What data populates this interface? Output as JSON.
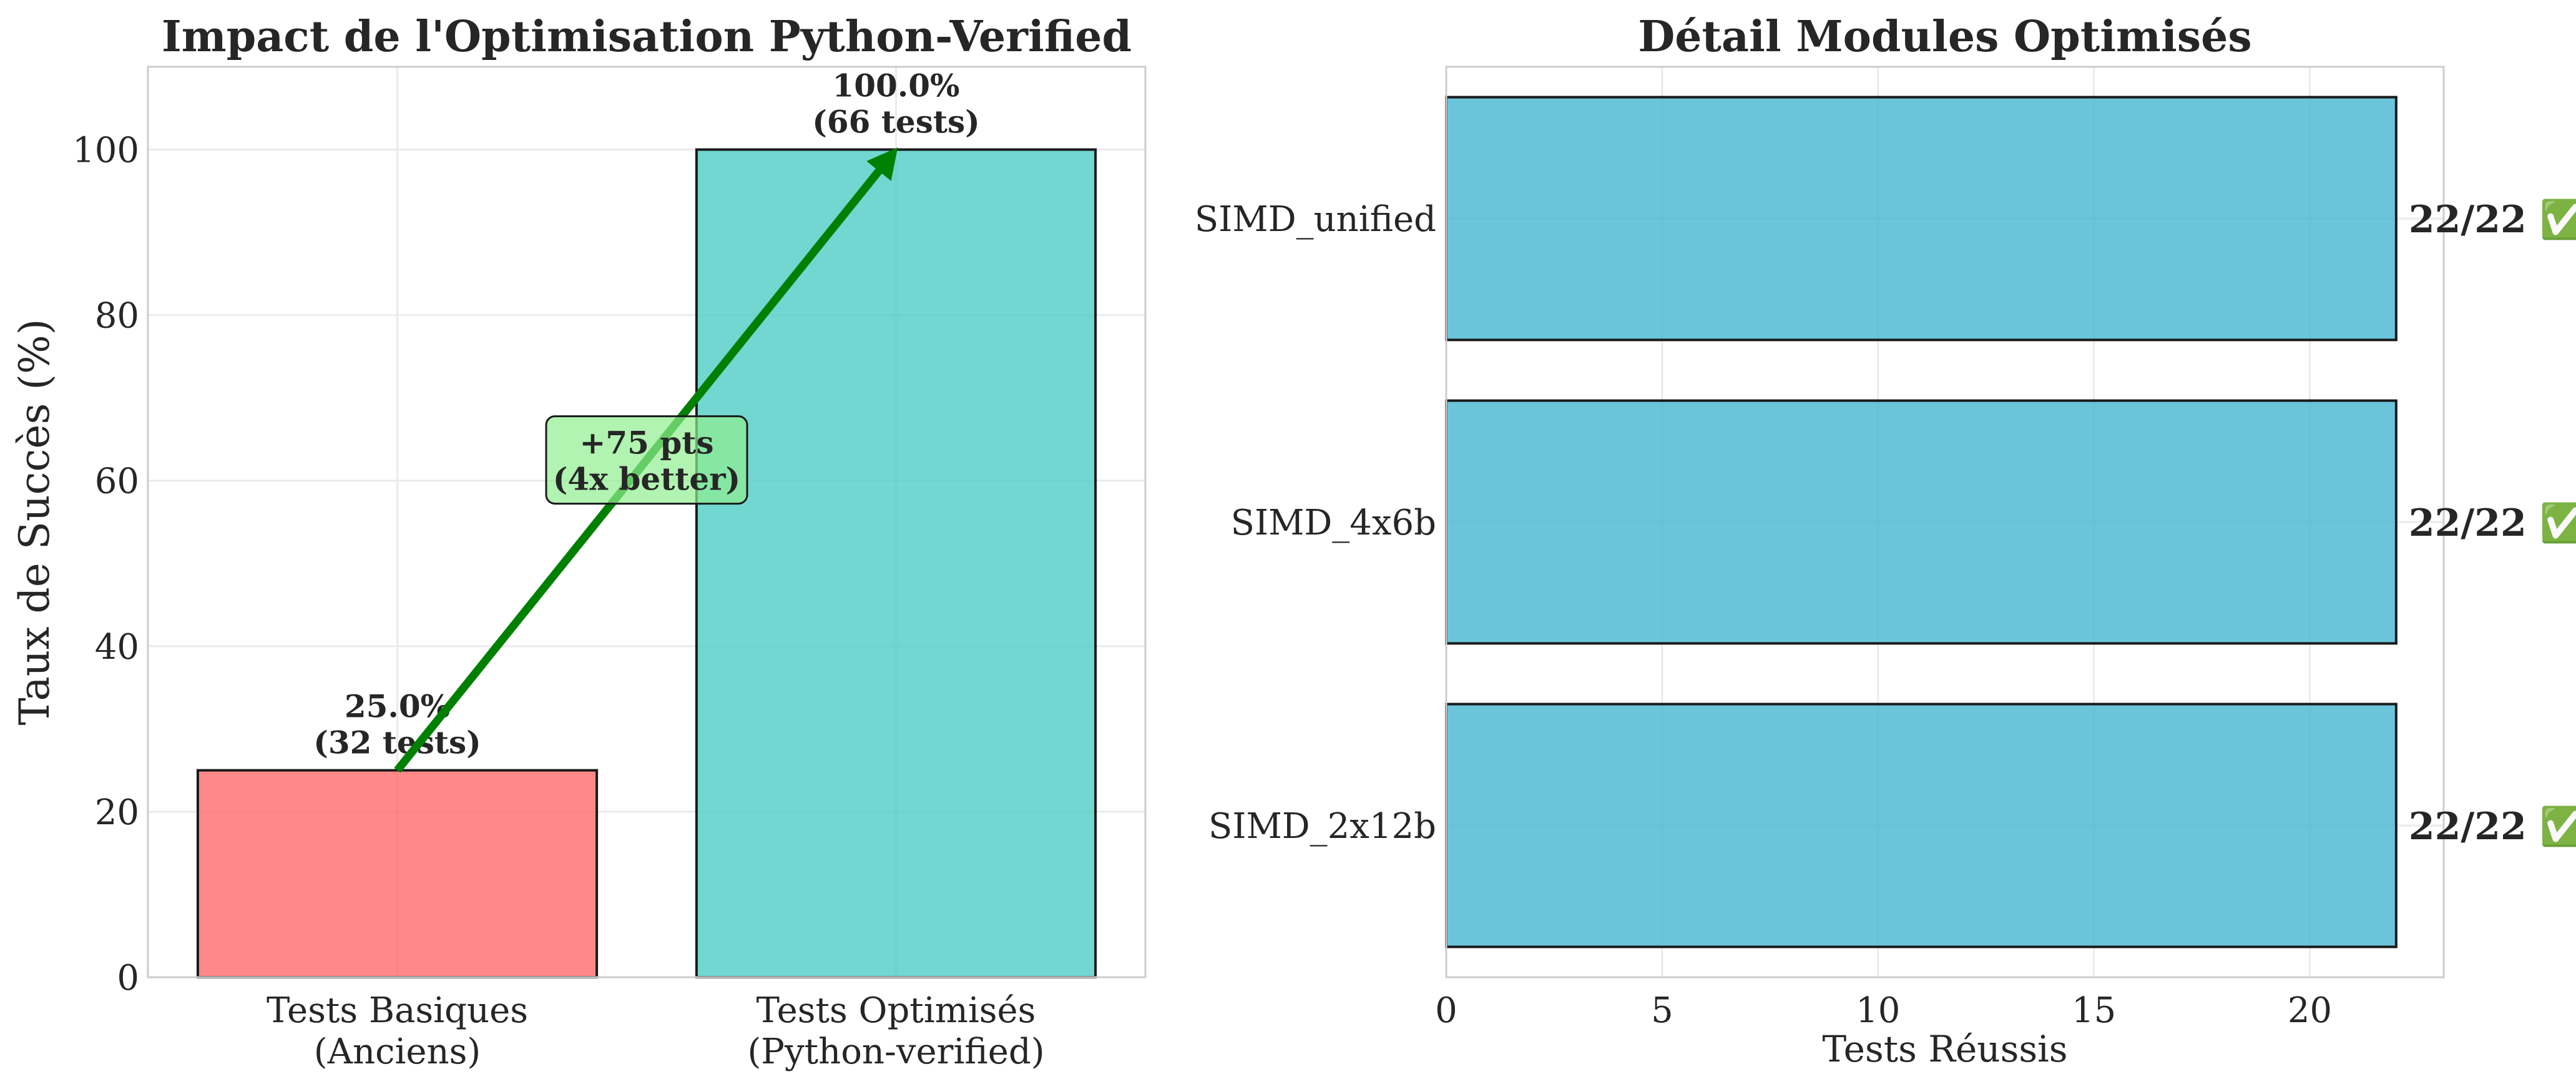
{
  "chart_data": [
    {
      "type": "bar",
      "title": "Impact de l'Optimisation Python-Verified",
      "ylabel": "Taux de Succès (%)",
      "xlabel": "",
      "ylim": [
        0,
        110
      ],
      "yticks": [
        0,
        20,
        40,
        60,
        80,
        100
      ],
      "categories": [
        [
          "Tests Basiques",
          "(Anciens)"
        ],
        [
          "Tests Optimisés",
          "(Python-verified)"
        ]
      ],
      "values": [
        25.0,
        100.0
      ],
      "colors": [
        "#ff6b6b",
        "#4ecdc4"
      ],
      "data_labels": [
        [
          "25.0%",
          "(32 tests)"
        ],
        [
          "100.0%",
          "(66 tests)"
        ]
      ],
      "annotation": {
        "text": [
          "+75 pts",
          "(4x better)"
        ],
        "arrow_color": "#008000",
        "box_color": "#90ee90"
      },
      "grid": true
    },
    {
      "type": "bar",
      "orientation": "horizontal",
      "title": "Détail Modules Optimisés",
      "xlabel": "Tests Réussis",
      "ylabel": "",
      "xlim": [
        0,
        23.1
      ],
      "xticks": [
        0,
        5,
        10,
        15,
        20
      ],
      "categories": [
        "SIMD_unified",
        "SIMD_4x6b",
        "SIMD_2x12b"
      ],
      "values": [
        22,
        22,
        22
      ],
      "color": "#45b7d1",
      "bar_labels": [
        "22/22 ✅",
        "22/22 ✅",
        "22/22 ✅"
      ],
      "grid": true
    }
  ]
}
